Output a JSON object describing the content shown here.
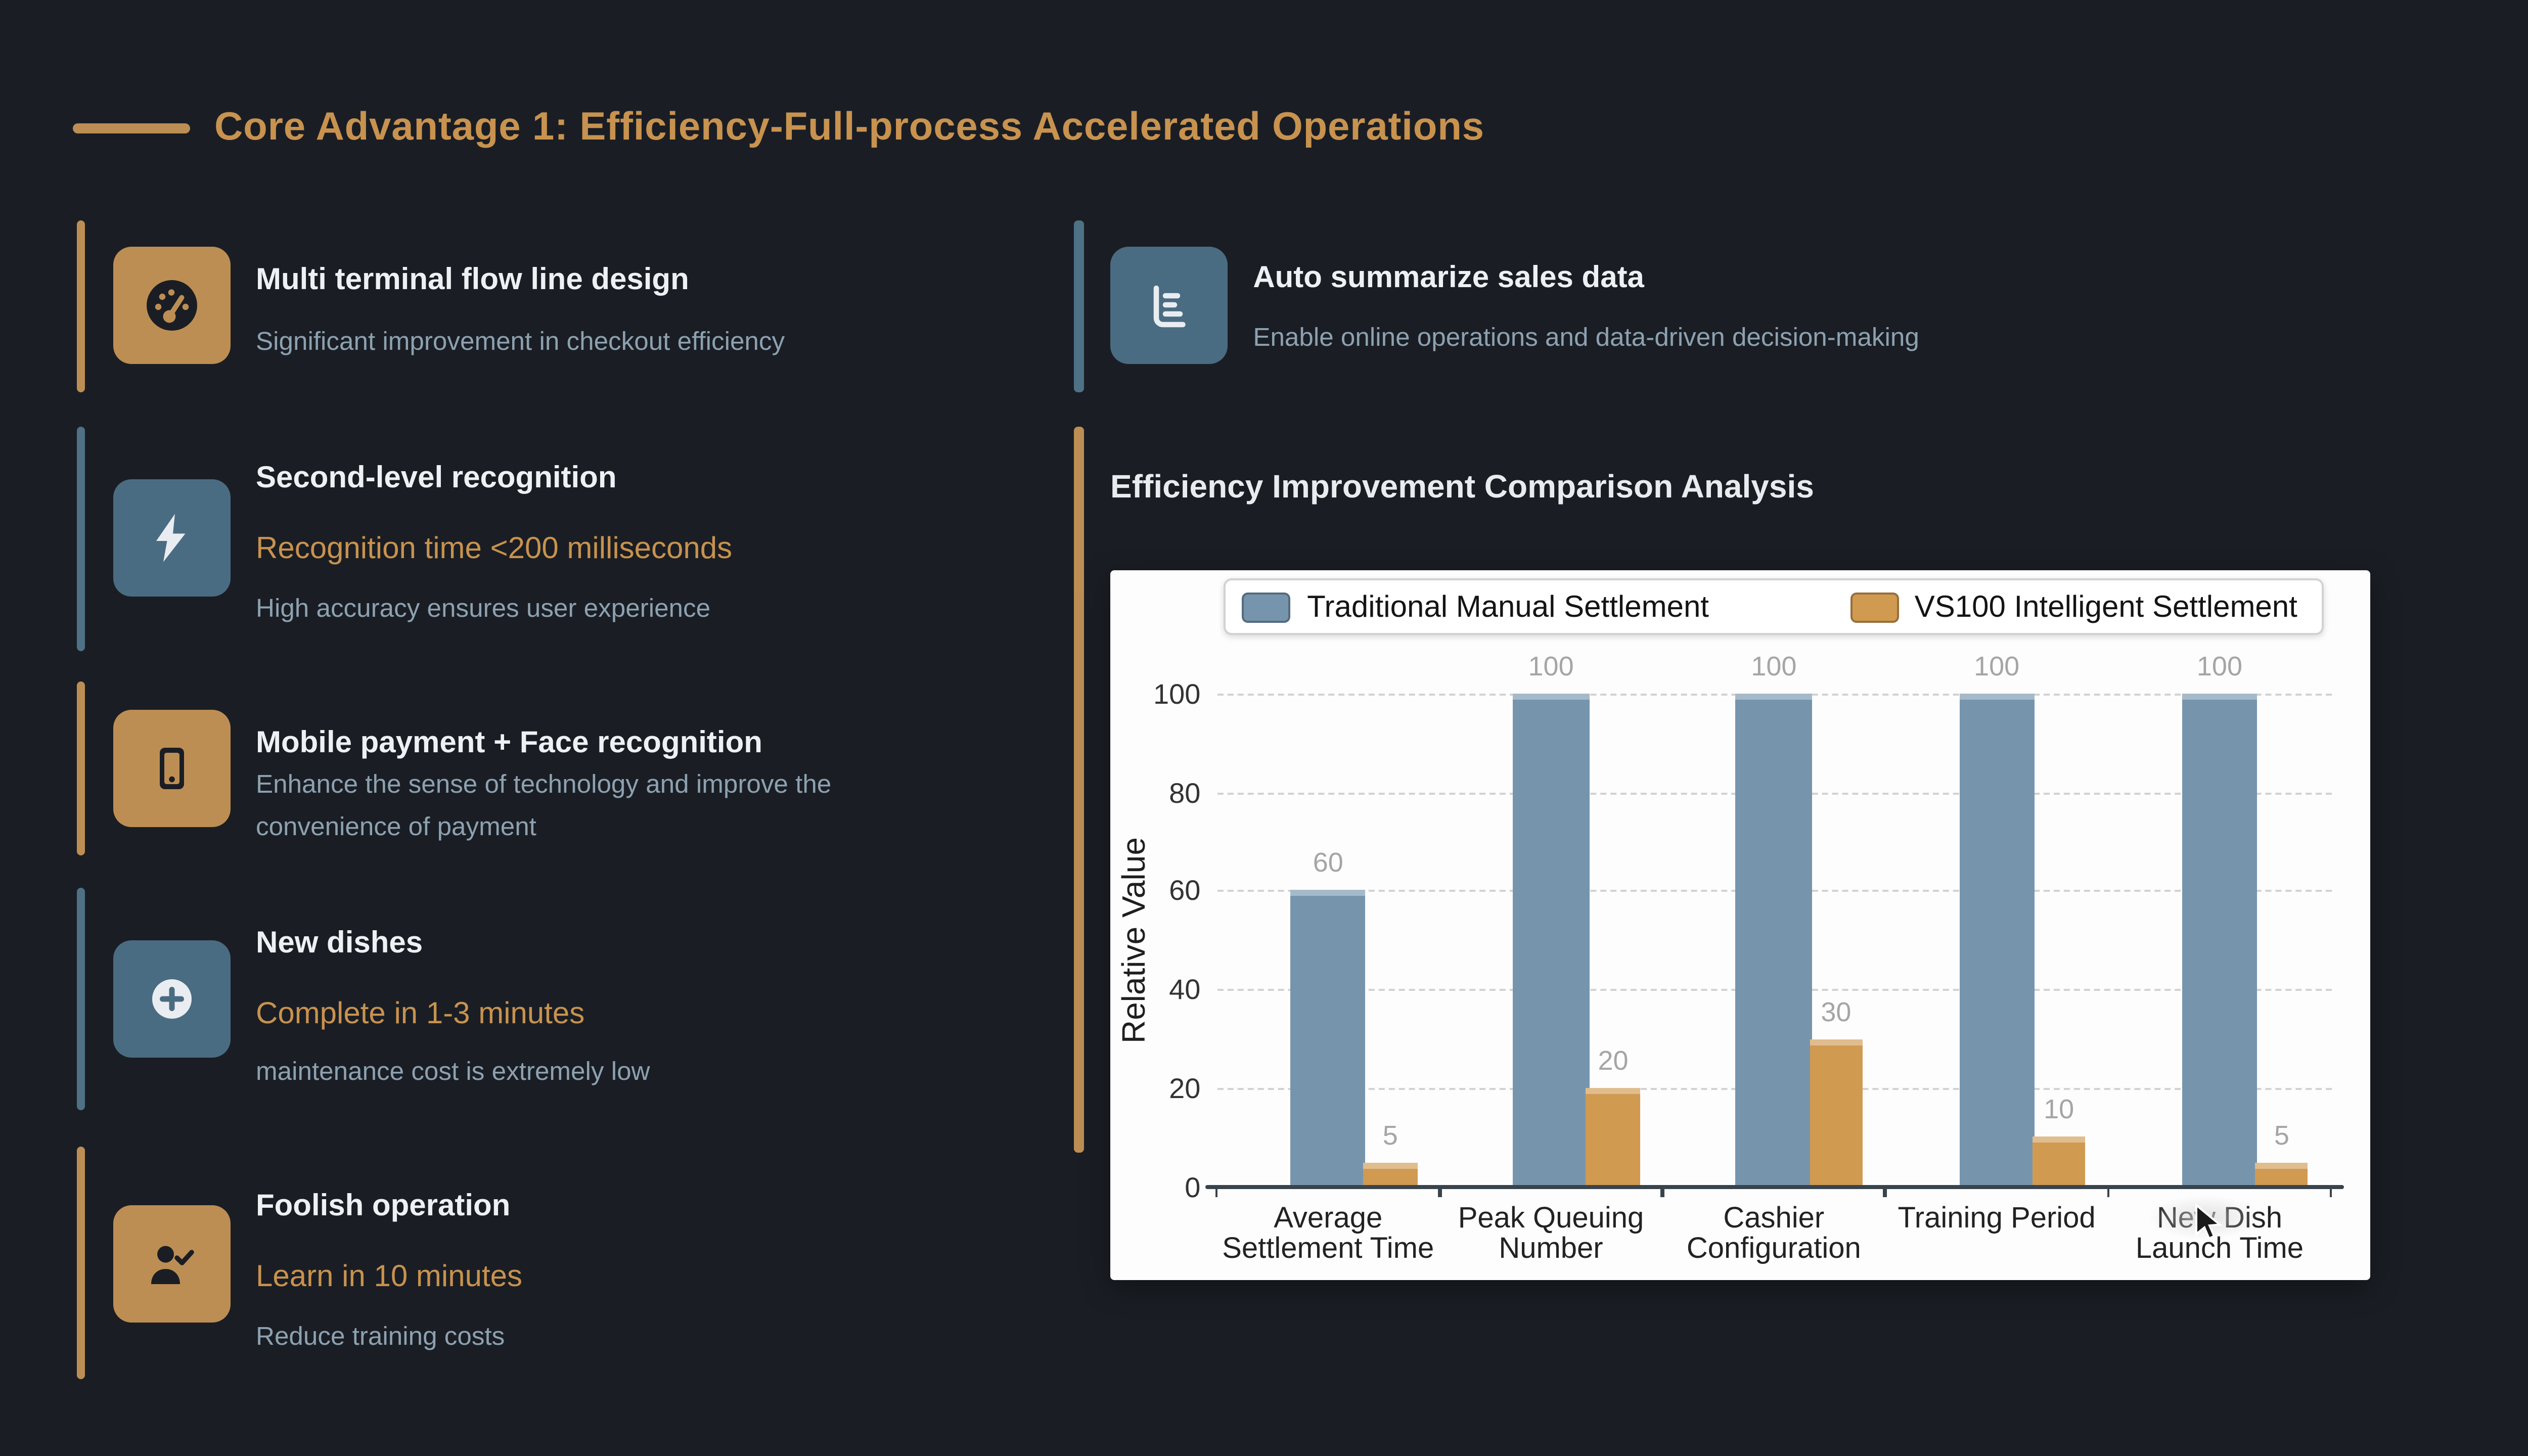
{
  "page": {
    "title": "Core Advantage 1: Efficiency-Full-process Accelerated Operations"
  },
  "left_features": [
    {
      "icon": "gauge-icon",
      "accent": "orange",
      "title": "Multi terminal flow line design",
      "subtitle": "Significant improvement in checkout efficiency"
    },
    {
      "icon": "lightning-icon",
      "accent": "blue",
      "title": "Second-level recognition",
      "highlight": "Recognition time <200 milliseconds",
      "subtitle": "High accuracy ensures user experience"
    },
    {
      "icon": "smartphone-icon",
      "accent": "orange",
      "title": "Mobile payment + Face recognition",
      "subtitle": "Enhance the sense of technology and improve the convenience of payment"
    },
    {
      "icon": "plus-circle-icon",
      "accent": "blue",
      "title": "New dishes",
      "highlight": "Complete in 1-3 minutes",
      "subtitle": "maintenance cost is extremely low"
    },
    {
      "icon": "person-check-icon",
      "accent": "orange",
      "title": "Foolish operation",
      "highlight": "Learn in 10 minutes",
      "subtitle": "Reduce training costs"
    }
  ],
  "right_feature": {
    "icon": "bar-chart-icon",
    "accent": "blue",
    "title": "Auto summarize sales data",
    "subtitle": "Enable online operations and data-driven decision-making"
  },
  "chart_section": {
    "title": "Efficiency Improvement Comparison Analysis"
  },
  "chart_data": {
    "type": "bar",
    "title": "Efficiency Improvement Comparison Analysis",
    "categories": [
      [
        "Average",
        "Settlement Time"
      ],
      [
        "Peak Queuing",
        "Number"
      ],
      [
        "Cashier",
        "Configuration"
      ],
      [
        "Training Period"
      ],
      [
        "New Dish",
        "Launch Time"
      ]
    ],
    "series": [
      {
        "name": "Traditional Manual Settlement",
        "color": "#7695ad",
        "values": [
          60,
          100,
          100,
          100,
          100
        ]
      },
      {
        "name": "VS100 Intelligent Settlement",
        "color": "#d09a51",
        "values": [
          5,
          20,
          30,
          10,
          5
        ]
      }
    ],
    "ylabel": "Relative Value",
    "ylim": [
      0,
      100
    ],
    "yticks": [
      0,
      20,
      40,
      60,
      80,
      100
    ],
    "grid": "dashed-horizontal",
    "legend_position": "top-center"
  },
  "colors": {
    "background": "#1a1e24",
    "accent_orange": "#bd8e53",
    "accent_blue": "#4a6c82",
    "highlight_text": "#c8924f",
    "title_text": "#eef1f4",
    "subtitle_text": "#8da1b0",
    "chart_background": "#fdfdfd",
    "bar_blue": "#7695ad",
    "bar_orange": "#d09a51"
  }
}
